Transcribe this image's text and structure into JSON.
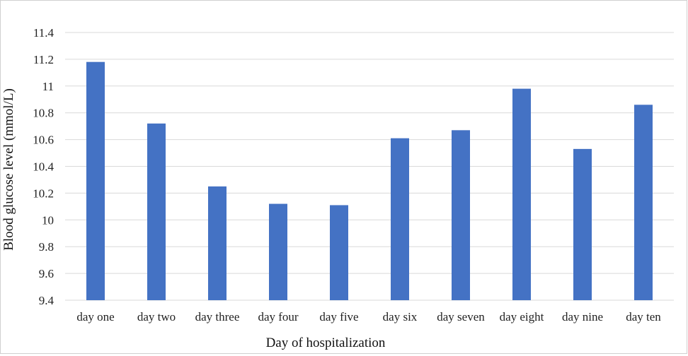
{
  "chart_data": {
    "type": "bar",
    "categories": [
      "day one",
      "day two",
      "day three",
      "day four",
      "day five",
      "day six",
      "day seven",
      "day eight",
      "day nine",
      "day ten"
    ],
    "values": [
      11.18,
      10.72,
      10.25,
      10.12,
      10.11,
      10.61,
      10.67,
      10.98,
      10.53,
      10.86
    ],
    "xlabel": "Day of hospitalization",
    "ylabel": "Blood glucose level (mmol/L)",
    "ylim": [
      9.4,
      11.4
    ],
    "yticks": [
      "9.4",
      "9.6",
      "9.8",
      "10",
      "10.2",
      "10.4",
      "10.6",
      "10.8",
      "11",
      "11.2",
      "11.4"
    ],
    "grid": true,
    "bar_color": "#4472C4",
    "grid_color": "#D9D9D9"
  }
}
